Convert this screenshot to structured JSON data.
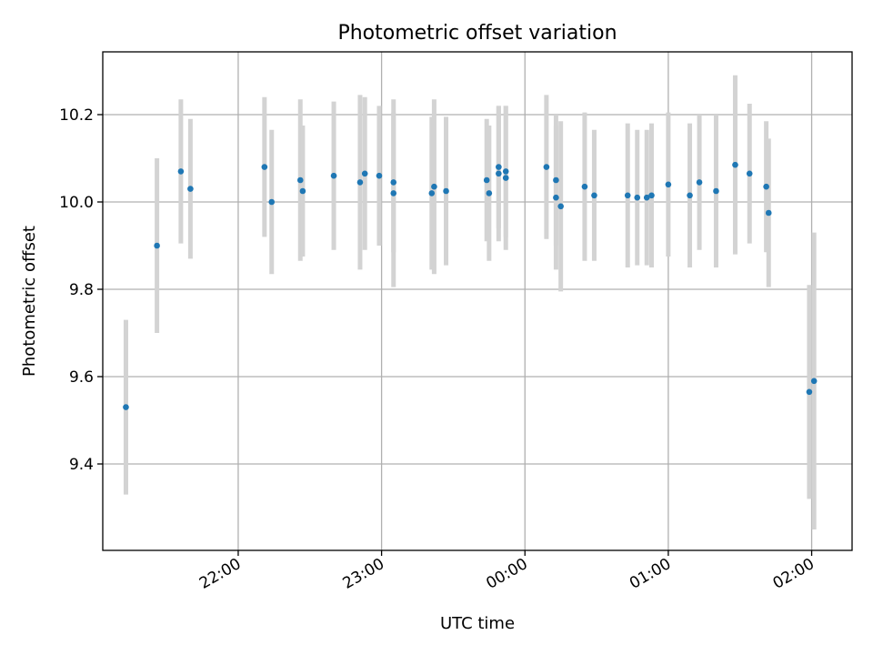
{
  "chart_data": {
    "type": "scatter",
    "title": "Photometric offset variation",
    "xlabel": "UTC time",
    "ylabel": "Photometric offset",
    "x_ticks": [
      "22:00",
      "23:00",
      "00:00",
      "01:00",
      "02:00"
    ],
    "y_ticks": [
      "9.4",
      "9.6",
      "9.8",
      "10.0",
      "10.2"
    ],
    "grid": true,
    "colors": {
      "points": "#1f77b4",
      "errorbars": "#d3d3d3"
    },
    "series": [
      {
        "x": [
          "21:13",
          "21:26",
          "21:36",
          "21:40",
          "22:11",
          "22:14",
          "22:26",
          "22:27",
          "22:40",
          "22:51",
          "22:53",
          "22:59",
          "23:05",
          "23:05",
          "23:21",
          "23:22",
          "23:27",
          "23:44",
          "23:45",
          "23:49",
          "23:49",
          "23:52",
          "23:52",
          "00:09",
          "00:13",
          "00:13",
          "00:15",
          "00:25",
          "00:29",
          "00:43",
          "00:47",
          "00:51",
          "00:53",
          "01:00",
          "01:09",
          "01:13",
          "01:20",
          "01:28",
          "01:34",
          "01:41",
          "01:42",
          "01:59",
          "02:01"
        ],
        "y": [
          9.53,
          9.9,
          10.07,
          10.03,
          10.08,
          10.0,
          10.05,
          10.025,
          10.06,
          10.045,
          10.065,
          10.06,
          10.02,
          10.045,
          10.02,
          10.035,
          10.025,
          10.05,
          10.02,
          10.08,
          10.065,
          10.055,
          10.07,
          10.08,
          10.01,
          10.05,
          9.99,
          10.035,
          10.015,
          10.015,
          10.01,
          10.01,
          10.015,
          10.04,
          10.015,
          10.045,
          10.025,
          10.085,
          10.065,
          10.035,
          9.975,
          9.565,
          9.59
        ],
        "err": [
          0.2,
          0.2,
          0.165,
          0.16,
          0.16,
          0.165,
          0.185,
          0.15,
          0.17,
          0.2,
          0.175,
          0.16,
          0.215,
          0.16,
          0.175,
          0.2,
          0.17,
          0.14,
          0.155,
          0.14,
          0.155,
          0.165,
          0.15,
          0.165,
          0.165,
          0.15,
          0.195,
          0.17,
          0.15,
          0.165,
          0.155,
          0.155,
          0.165,
          0.165,
          0.165,
          0.155,
          0.175,
          0.205,
          0.16,
          0.15,
          0.17,
          0.245,
          0.34
        ]
      }
    ]
  }
}
